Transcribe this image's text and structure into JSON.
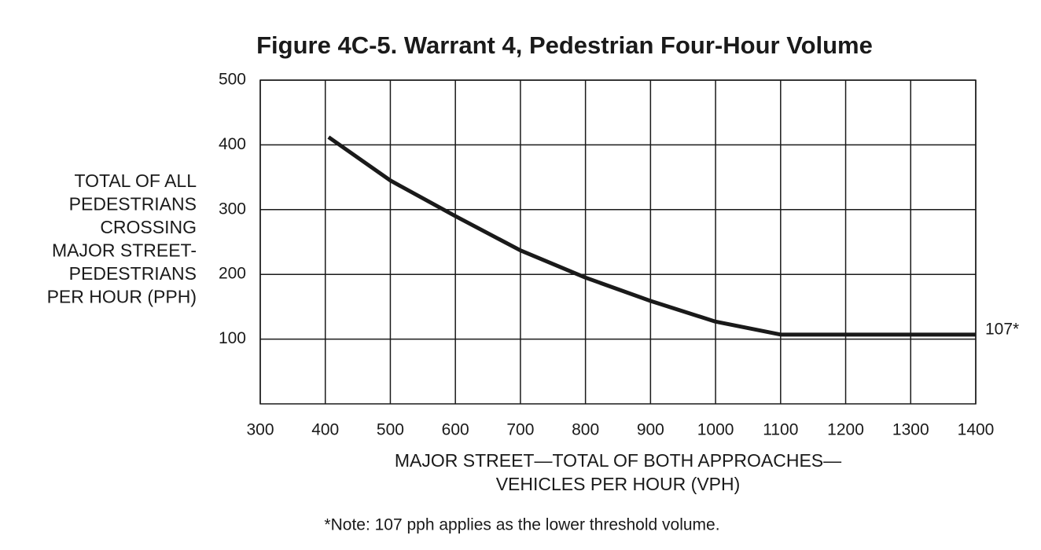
{
  "chart_data": {
    "type": "line",
    "title": "Figure 4C-5.  Warrant 4, Pedestrian Four-Hour Volume",
    "y_label": [
      "TOTAL OF ALL",
      "PEDESTRIANS",
      "CROSSING",
      "MAJOR STREET-",
      "PEDESTRIANS",
      "PER HOUR (PPH)"
    ],
    "x_label": [
      "MAJOR STREET—TOTAL OF BOTH APPROACHES—",
      "VEHICLES PER HOUR (VPH)"
    ],
    "note": "*Note: 107 pph applies as the lower threshold volume.",
    "x": [
      405,
      500,
      600,
      700,
      800,
      900,
      1000,
      1100,
      1400
    ],
    "series": [
      {
        "color": "#1a1a1a",
        "values": [
          412,
          345,
          290,
          237,
          195,
          159,
          127,
          107,
          107
        ]
      }
    ],
    "annotations": [
      {
        "text": "107*",
        "x": 1400,
        "y": 107
      }
    ],
    "xlim": [
      300,
      1400
    ],
    "xticks": [
      300,
      400,
      500,
      600,
      700,
      800,
      900,
      1000,
      1100,
      1200,
      1300,
      1400
    ],
    "ylim": [
      0,
      500
    ],
    "yticks": [
      100,
      200,
      300,
      400,
      500
    ],
    "grid": true
  }
}
